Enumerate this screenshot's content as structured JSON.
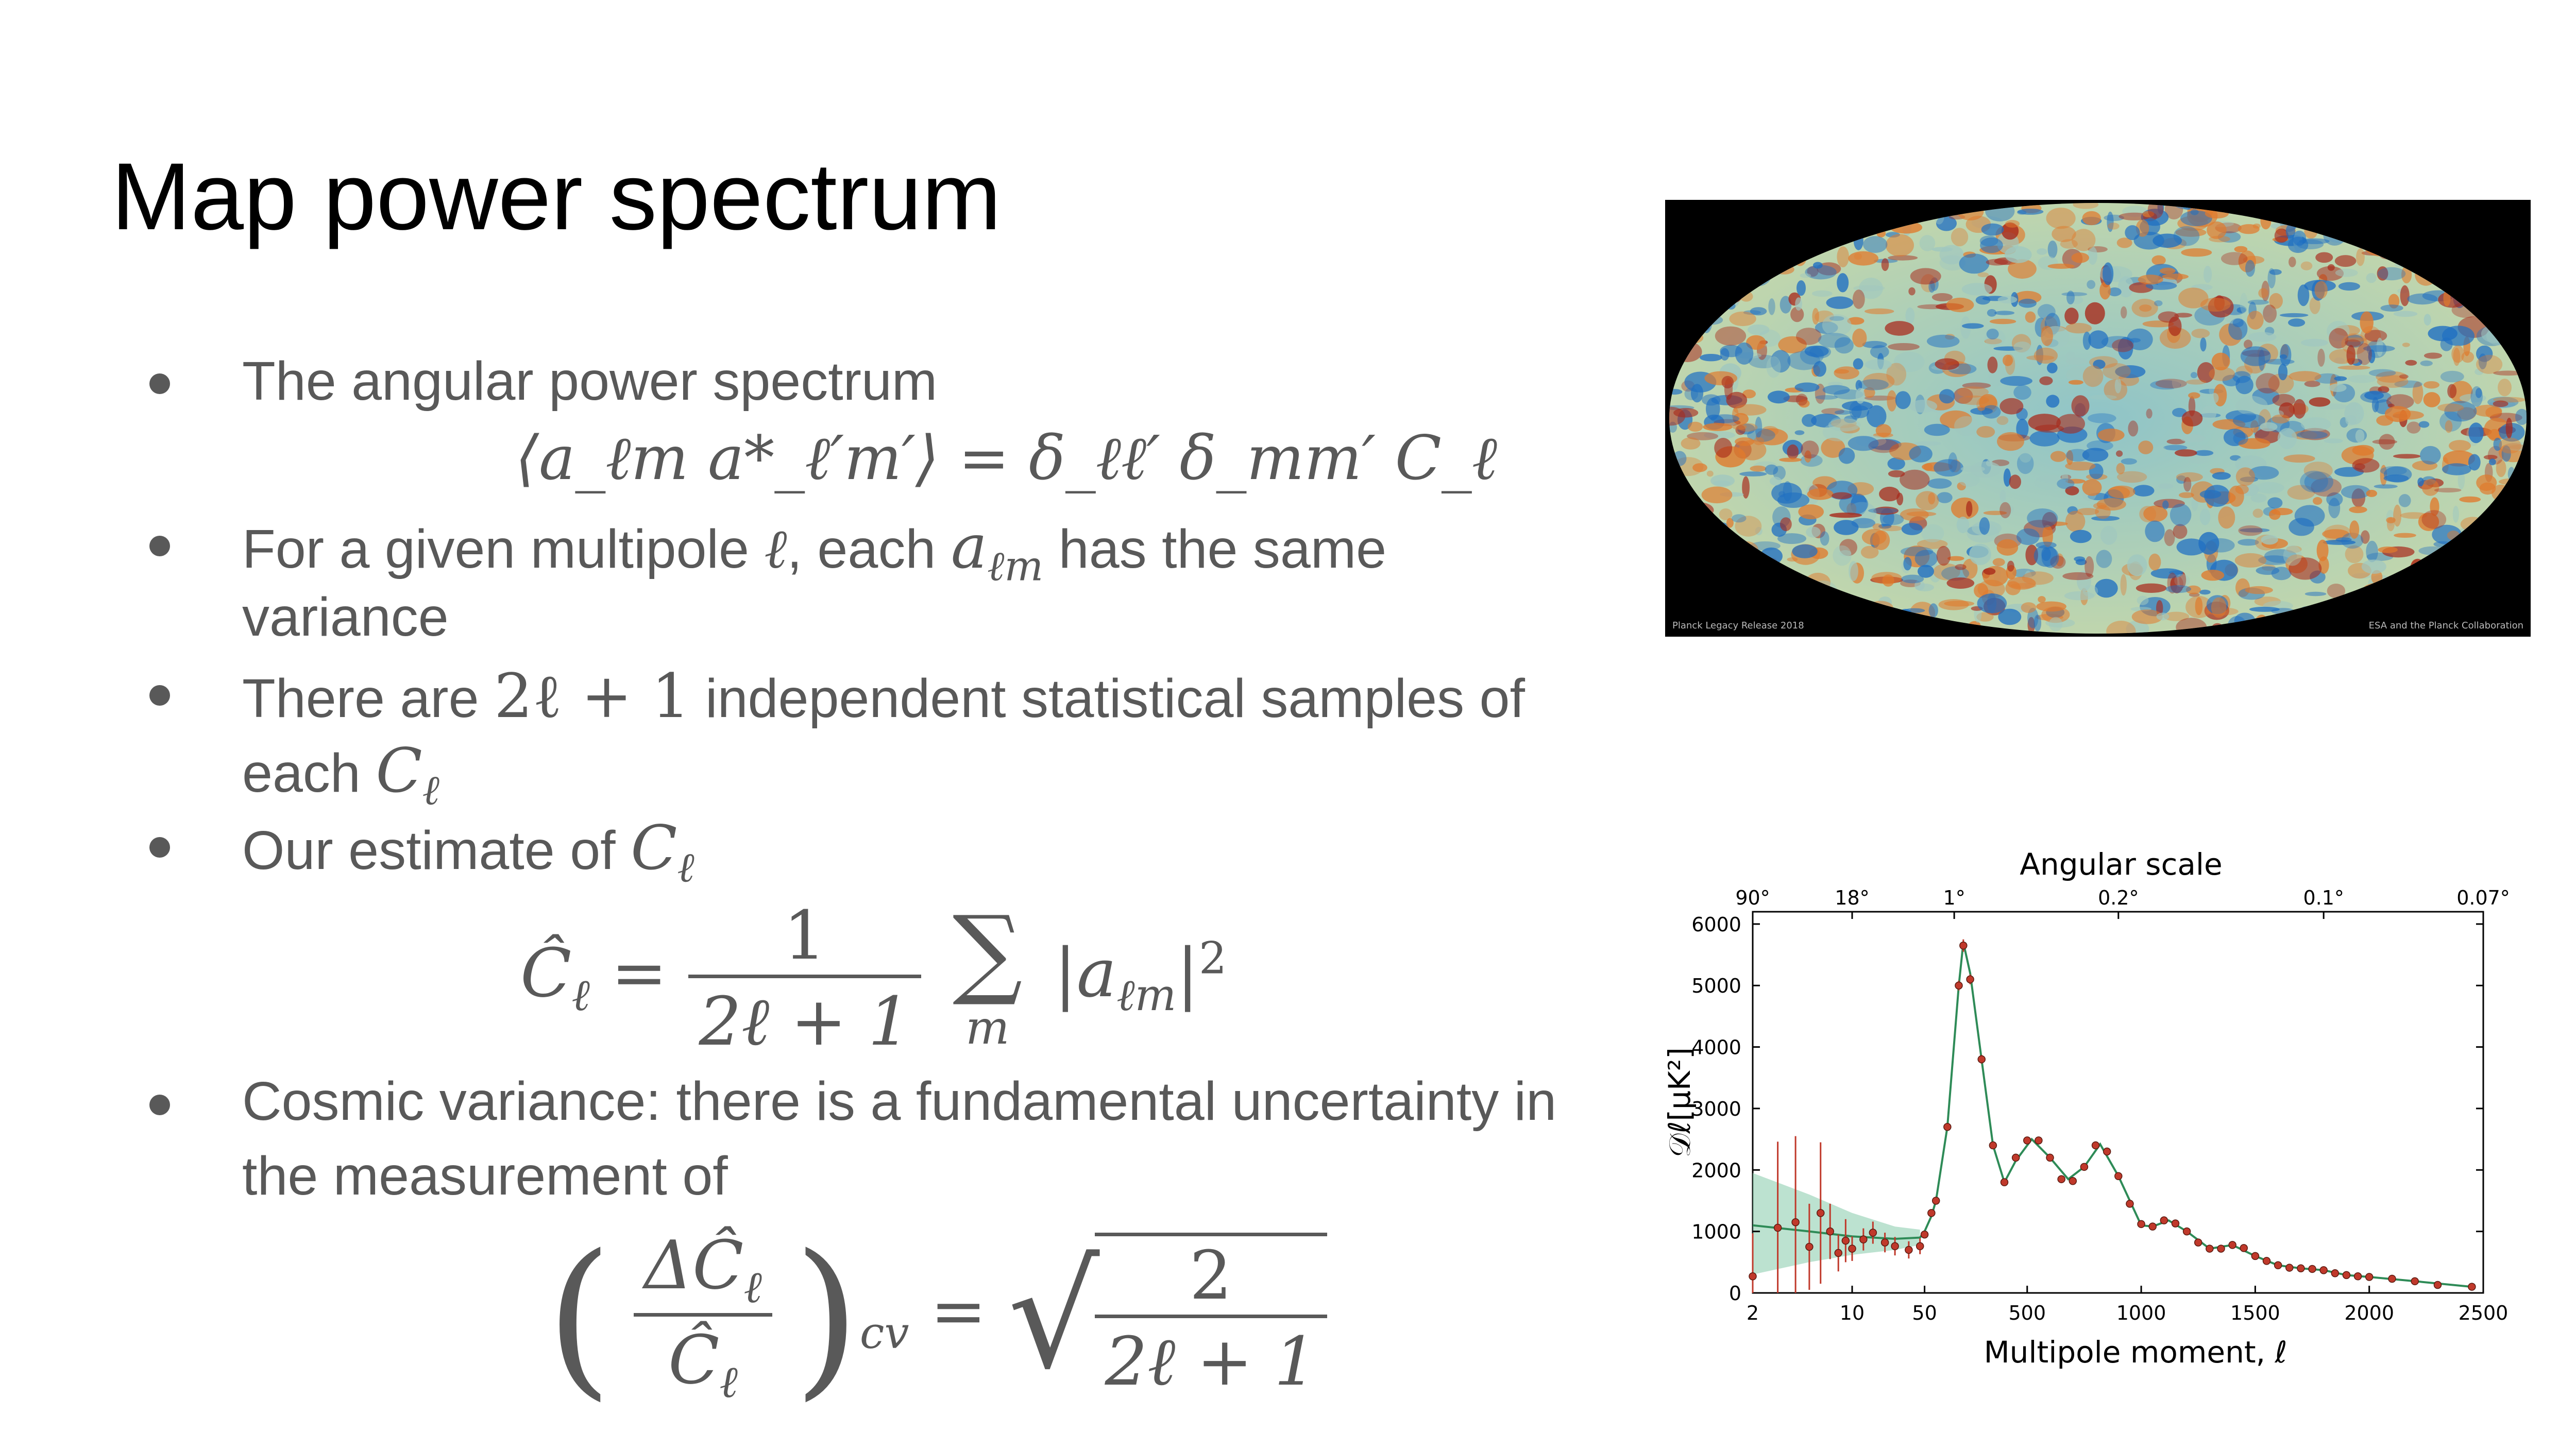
{
  "slide": {
    "title": "Map power spectrum",
    "bullets": [
      {
        "text": "The angular power spectrum"
      },
      {
        "pre": "For a given multipole",
        "mid": ", each",
        "post": "has the same",
        "line2": "variance"
      },
      {
        "pre": "There are",
        "post": "independent statistical samples of",
        "line2": "each"
      },
      {
        "text": "Our estimate of"
      },
      {
        "line1": "Cosmic variance: there is a fundamental uncertainty in",
        "line2": "the measurement of"
      }
    ],
    "math": {
      "ell": "ℓ",
      "alm": "a",
      "alm_sub": "ℓm",
      "two_ell_plus_one": "2ℓ + 1",
      "C": "C",
      "C_sub": "ℓ",
      "eq1": "⟨a_ℓm a*_ℓ′m′⟩ = δ_ℓℓ′ δ_mm′ C_ℓ",
      "eq2_num": "1",
      "eq2_den": "2ℓ + 1",
      "eq2_sum": "∑",
      "eq2_sum_sub": "m",
      "eq3_num": "ΔĈ",
      "eq3_den": "Ĉ",
      "eq3_sub": "cv",
      "eq3_rnum": "2",
      "eq3_rden": "2ℓ + 1"
    }
  },
  "cmb_map": {
    "caption_left": "Planck Legacy Release 2018",
    "caption_right": "ESA and the Planck Collaboration",
    "colors": {
      "background": "#000000",
      "cold": "#1f6fc2",
      "mid": "#9fc7c0",
      "warm": "#e07a2c",
      "hot": "#a8281a"
    }
  },
  "chart_data": {
    "type": "scatter",
    "title": "Angular scale",
    "xlabel": "Multipole moment, ℓ",
    "ylabel": "𝒟ℓ[μK²]",
    "x_ticks": [
      "2",
      "10",
      "50",
      "500",
      "1000",
      "1500",
      "2000",
      "2500"
    ],
    "y_ticks": [
      "0",
      "1000",
      "2000",
      "3000",
      "4000",
      "5000",
      "6000"
    ],
    "top_ticks": [
      "90°",
      "18°",
      "1°",
      "0.2°",
      "0.1°",
      "0.07°"
    ],
    "ylim": [
      0,
      6200
    ],
    "xlim": [
      2,
      2500
    ],
    "x_scale": "log below 30, linear above",
    "series": [
      {
        "style": "points with error bars",
        "color": "#c0392b",
        "points": [
          [
            2,
            270,
            700
          ],
          [
            3,
            1060,
            1400
          ],
          [
            4,
            1150,
            1400
          ],
          [
            5,
            750,
            700
          ],
          [
            6,
            1300,
            1150
          ],
          [
            7,
            1000,
            450
          ],
          [
            8,
            650,
            300
          ],
          [
            9,
            850,
            350
          ],
          [
            10,
            720,
            200
          ],
          [
            12,
            870,
            180
          ],
          [
            14,
            980,
            180
          ],
          [
            17,
            820,
            160
          ],
          [
            20,
            760,
            150
          ],
          [
            25,
            700,
            140
          ],
          [
            30,
            760,
            130
          ],
          [
            50,
            950,
            40
          ],
          [
            80,
            1300,
            45
          ],
          [
            100,
            1500,
            45
          ],
          [
            150,
            2700,
            60
          ],
          [
            200,
            5000,
            80
          ],
          [
            220,
            5650,
            100
          ],
          [
            250,
            5100,
            80
          ],
          [
            300,
            3800,
            70
          ],
          [
            350,
            2400,
            60
          ],
          [
            400,
            1800,
            50
          ],
          [
            450,
            2200,
            50
          ],
          [
            500,
            2480,
            50
          ],
          [
            550,
            2480,
            50
          ],
          [
            600,
            2200,
            50
          ],
          [
            650,
            1850,
            45
          ],
          [
            700,
            1820,
            45
          ],
          [
            750,
            2050,
            45
          ],
          [
            800,
            2400,
            45
          ],
          [
            850,
            2300,
            45
          ],
          [
            900,
            1900,
            40
          ],
          [
            950,
            1450,
            40
          ],
          [
            1000,
            1120,
            40
          ],
          [
            1050,
            1080,
            40
          ],
          [
            1100,
            1180,
            40
          ],
          [
            1150,
            1130,
            40
          ],
          [
            1200,
            1000,
            35
          ],
          [
            1250,
            820,
            35
          ],
          [
            1300,
            720,
            35
          ],
          [
            1350,
            720,
            35
          ],
          [
            1400,
            780,
            35
          ],
          [
            1450,
            730,
            35
          ],
          [
            1500,
            600,
            35
          ],
          [
            1550,
            520,
            35
          ],
          [
            1600,
            450,
            35
          ],
          [
            1650,
            410,
            35
          ],
          [
            1700,
            400,
            35
          ],
          [
            1750,
            390,
            35
          ],
          [
            1800,
            370,
            35
          ],
          [
            1850,
            320,
            35
          ],
          [
            1900,
            290,
            35
          ],
          [
            1950,
            270,
            35
          ],
          [
            2000,
            260,
            35
          ],
          [
            2100,
            230,
            35
          ],
          [
            2200,
            190,
            35
          ],
          [
            2300,
            130,
            35
          ],
          [
            2450,
            100,
            35
          ]
        ]
      },
      {
        "style": "model line",
        "color": "#2e8b57",
        "points": [
          [
            2,
            1100
          ],
          [
            5,
            1000
          ],
          [
            10,
            920
          ],
          [
            20,
            880
          ],
          [
            30,
            900
          ],
          [
            50,
            1000
          ],
          [
            80,
            1250
          ],
          [
            100,
            1500
          ],
          [
            150,
            2700
          ],
          [
            200,
            5000
          ],
          [
            220,
            5700
          ],
          [
            250,
            5200
          ],
          [
            300,
            3800
          ],
          [
            350,
            2400
          ],
          [
            400,
            1800
          ],
          [
            450,
            2150
          ],
          [
            520,
            2500
          ],
          [
            600,
            2200
          ],
          [
            680,
            1850
          ],
          [
            750,
            2050
          ],
          [
            820,
            2420
          ],
          [
            900,
            1900
          ],
          [
            1000,
            1100
          ],
          [
            1050,
            1080
          ],
          [
            1120,
            1180
          ],
          [
            1200,
            1000
          ],
          [
            1300,
            720
          ],
          [
            1400,
            780
          ],
          [
            1500,
            600
          ],
          [
            1600,
            450
          ],
          [
            1700,
            400
          ],
          [
            1800,
            370
          ],
          [
            1900,
            290
          ],
          [
            2000,
            260
          ],
          [
            2200,
            190
          ],
          [
            2450,
            100
          ]
        ]
      }
    ],
    "cosmic_variance_band": [
      [
        2,
        300,
        1950
      ],
      [
        5,
        500,
        1600
      ],
      [
        10,
        620,
        1300
      ],
      [
        20,
        700,
        1080
      ],
      [
        30,
        780,
        1030
      ]
    ]
  }
}
